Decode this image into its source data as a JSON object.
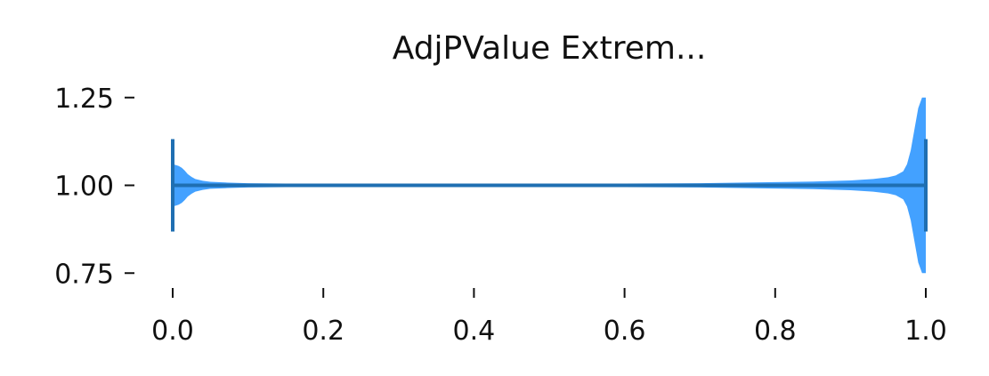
{
  "chart_data": {
    "type": "violin",
    "title": "AdjPValue Extrem...",
    "xlabel": "",
    "ylabel": "",
    "xlim": [
      0.0,
      1.0
    ],
    "ylim": [
      0.7,
      1.3
    ],
    "xticks": [
      0.0,
      0.2,
      0.4,
      0.6,
      0.8,
      1.0
    ],
    "xtick_labels": [
      "0.0",
      "0.2",
      "0.4",
      "0.6",
      "0.8",
      "1.0"
    ],
    "yticks": [
      0.75,
      1.0,
      1.25
    ],
    "ytick_labels": [
      "0.75",
      "1.00",
      "1.25"
    ],
    "orientation": "horizontal",
    "grid": false,
    "colors": {
      "body": "#3399ff",
      "line": "#1f6fb2"
    },
    "series": [
      {
        "position": 1.0,
        "extrema": [
          0.0,
          1.0
        ],
        "median": 1.0,
        "density_profile": {
          "x": [
            0.0,
            0.004,
            0.008,
            0.012,
            0.016,
            0.02,
            0.025,
            0.03,
            0.04,
            0.05,
            0.07,
            0.1,
            0.15,
            0.2,
            0.3,
            0.4,
            0.5,
            0.6,
            0.7,
            0.8,
            0.85,
            0.9,
            0.93,
            0.95,
            0.96,
            0.97,
            0.975,
            0.98,
            0.985,
            0.99,
            0.995,
            1.0
          ],
          "half_width": [
            0.06,
            0.058,
            0.055,
            0.05,
            0.042,
            0.032,
            0.024,
            0.018,
            0.013,
            0.01,
            0.008,
            0.006,
            0.005,
            0.004,
            0.004,
            0.004,
            0.004,
            0.005,
            0.006,
            0.009,
            0.011,
            0.014,
            0.018,
            0.023,
            0.028,
            0.04,
            0.06,
            0.1,
            0.16,
            0.22,
            0.25,
            0.25
          ]
        }
      }
    ]
  }
}
